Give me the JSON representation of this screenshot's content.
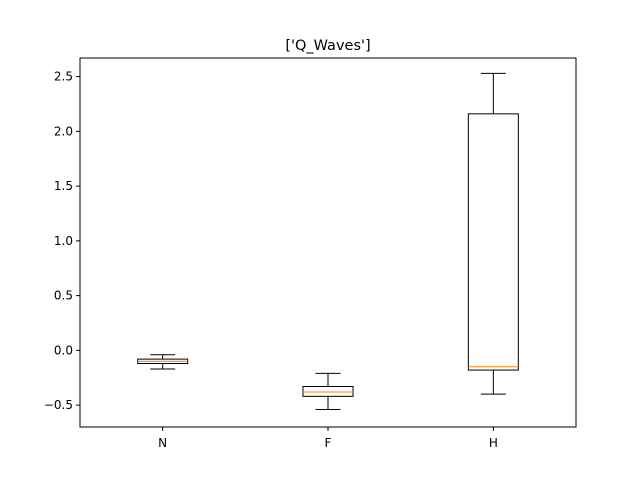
{
  "chart_data": {
    "type": "box",
    "title": "['Q_Waves']",
    "xlabel": "",
    "ylabel": "",
    "categories": [
      "N",
      "F",
      "H"
    ],
    "ylim": [
      -0.7,
      2.67
    ],
    "yticks": [
      -0.5,
      0.0,
      0.5,
      1.0,
      1.5,
      2.0,
      2.5
    ],
    "ytick_labels": [
      "−0.5",
      "0.0",
      "0.5",
      "1.0",
      "1.5",
      "2.0",
      "2.5"
    ],
    "grid": false,
    "boxes": [
      {
        "name": "N",
        "whisker_low": -0.17,
        "q1": -0.12,
        "median": -0.1,
        "q3": -0.08,
        "whisker_high": -0.04
      },
      {
        "name": "F",
        "whisker_low": -0.54,
        "q1": -0.42,
        "median": -0.38,
        "q3": -0.33,
        "whisker_high": -0.21
      },
      {
        "name": "H",
        "whisker_low": -0.4,
        "q1": -0.18,
        "median": -0.15,
        "q3": 2.16,
        "whisker_high": 2.53
      }
    ],
    "colors": {
      "box": "#000000",
      "median": "#ff7f0e",
      "whisker": "#000000"
    }
  }
}
